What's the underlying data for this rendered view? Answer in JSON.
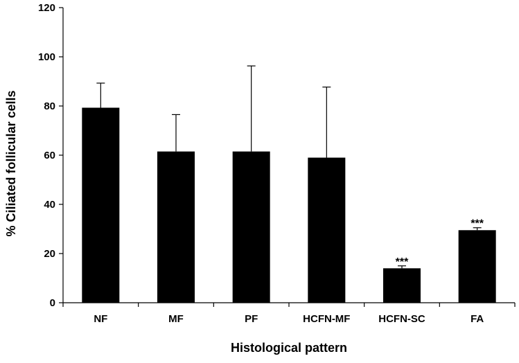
{
  "chart_data": {
    "type": "bar",
    "categories": [
      "NF",
      "MF",
      "PF",
      "HCFN-MF",
      "HCFN-SC",
      "FA"
    ],
    "series": [
      {
        "values": [
          79.3,
          61.5,
          61.5,
          59.0,
          14.0,
          29.5
        ],
        "error_upper": [
          10.0,
          15.0,
          34.8,
          28.7,
          1.0,
          1.0
        ],
        "significance": [
          "",
          "",
          "",
          "",
          "***",
          "***"
        ]
      }
    ],
    "xlabel": "Histological pattern",
    "ylabel": "% Ciliated follicular cells",
    "ylim": [
      0,
      120
    ],
    "yticks": [
      0,
      20,
      40,
      60,
      80,
      100,
      120
    ],
    "grid": false,
    "legend": "none",
    "bar_color": "#000000"
  }
}
